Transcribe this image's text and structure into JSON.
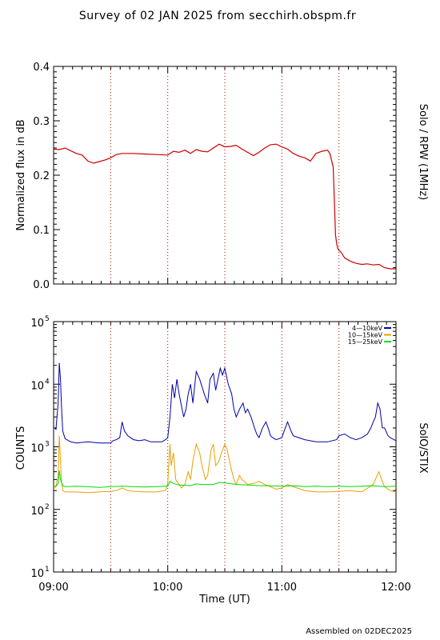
{
  "title": "Survey of 02 JAN 2025 from secchirh.obspm.fr",
  "footer": "Assembled on 02DEC2025",
  "time_axis": {
    "xlabel": "Time (UT)",
    "ticks": [
      "09:00",
      "10:00",
      "11:00",
      "12:00"
    ],
    "range_hours": [
      9,
      12
    ],
    "dotted_markers_hours": [
      9.5,
      10.0,
      10.5,
      11.0,
      11.5
    ]
  },
  "colors": {
    "rpw": "#cc0000",
    "band1": "#0000aa",
    "band2": "#e8a000",
    "band3": "#00dd00",
    "marker": "#aa0000"
  },
  "chart_data": [
    {
      "type": "line",
      "ylabel": "Normalized flux in dB",
      "right_label": "Solo / RPW (1MHz)",
      "ylim": [
        0,
        0.4
      ],
      "yscale": "linear",
      "yticks": [
        "0.0",
        "0.1",
        "0.2",
        "0.3",
        "0.4"
      ],
      "series": [
        {
          "x": [
            9.0,
            9.05,
            9.1,
            9.15,
            9.2,
            9.25,
            9.3,
            9.35,
            9.4,
            9.45,
            9.5,
            9.55,
            9.6,
            9.7,
            9.8,
            9.9,
            10.0,
            10.05,
            10.1,
            10.15,
            10.2,
            10.25,
            10.3,
            10.35,
            10.4,
            10.45,
            10.5,
            10.55,
            10.6,
            10.65,
            10.7,
            10.75,
            10.8,
            10.85,
            10.9,
            10.95,
            11.0,
            11.05,
            11.1,
            11.15,
            11.2,
            11.25,
            11.3,
            11.35,
            11.4,
            11.42,
            11.45,
            11.47,
            11.48,
            11.49,
            11.5,
            11.52,
            11.55,
            11.6,
            11.65,
            11.7,
            11.75,
            11.8,
            11.85,
            11.9,
            11.95,
            12.0
          ],
          "values": [
            0.248,
            0.247,
            0.25,
            0.245,
            0.24,
            0.237,
            0.226,
            0.222,
            0.225,
            0.228,
            0.232,
            0.238,
            0.24,
            0.24,
            0.239,
            0.238,
            0.237,
            0.244,
            0.242,
            0.246,
            0.24,
            0.247,
            0.244,
            0.243,
            0.25,
            0.257,
            0.252,
            0.253,
            0.255,
            0.248,
            0.242,
            0.236,
            0.242,
            0.25,
            0.256,
            0.257,
            0.252,
            0.248,
            0.24,
            0.235,
            0.232,
            0.226,
            0.24,
            0.244,
            0.246,
            0.24,
            0.215,
            0.09,
            0.075,
            0.065,
            0.062,
            0.058,
            0.048,
            0.042,
            0.038,
            0.036,
            0.037,
            0.035,
            0.036,
            0.03,
            0.028,
            0.028
          ]
        }
      ]
    },
    {
      "type": "line",
      "ylabel": "COUNTS",
      "right_label": "SolO/STIX",
      "ylim": [
        10,
        100000
      ],
      "yscale": "log",
      "yticks": [
        "10",
        "10",
        "10",
        "10",
        "10"
      ],
      "ytick_exponents": [
        "1",
        "2",
        "3",
        "4",
        "5"
      ],
      "legend": "top-right",
      "series": [
        {
          "name": "4—10keV",
          "x": [
            9.0,
            9.01,
            9.02,
            9.04,
            9.05,
            9.06,
            9.07,
            9.08,
            9.1,
            9.15,
            9.2,
            9.3,
            9.4,
            9.5,
            9.52,
            9.55,
            9.58,
            9.6,
            9.62,
            9.65,
            9.7,
            9.75,
            9.8,
            9.85,
            9.9,
            9.95,
            9.98,
            10.0,
            10.02,
            10.04,
            10.06,
            10.08,
            10.1,
            10.12,
            10.14,
            10.16,
            10.18,
            10.2,
            10.22,
            10.25,
            10.28,
            10.32,
            10.35,
            10.37,
            10.4,
            10.42,
            10.44,
            10.46,
            10.48,
            10.5,
            10.53,
            10.56,
            10.58,
            10.6,
            10.63,
            10.66,
            10.68,
            10.7,
            10.73,
            10.76,
            10.78,
            10.8,
            10.83,
            10.86,
            10.88,
            10.9,
            10.92,
            10.95,
            11.0,
            11.03,
            11.05,
            11.08,
            11.1,
            11.15,
            11.2,
            11.3,
            11.4,
            11.48,
            11.5,
            11.55,
            11.6,
            11.65,
            11.7,
            11.75,
            11.78,
            11.8,
            11.82,
            11.84,
            11.86,
            11.88,
            11.9,
            11.93,
            11.95,
            12.0
          ],
          "values": [
            2000,
            2000,
            1900,
            5000,
            22000,
            12000,
            4000,
            1800,
            1350,
            1200,
            1150,
            1200,
            1150,
            1150,
            1250,
            1300,
            1400,
            2500,
            1800,
            1500,
            1300,
            1250,
            1300,
            1200,
            1200,
            1200,
            1300,
            1400,
            3000,
            10000,
            6000,
            12000,
            7000,
            4500,
            3000,
            4000,
            7000,
            10000,
            5000,
            16000,
            12000,
            7000,
            5000,
            12000,
            15000,
            8000,
            12000,
            18000,
            14000,
            18000,
            10000,
            7000,
            4000,
            3000,
            4000,
            5000,
            3500,
            4000,
            3000,
            2000,
            1600,
            1400,
            2000,
            2500,
            2000,
            1500,
            1400,
            1300,
            1400,
            2000,
            2500,
            1800,
            1500,
            1400,
            1300,
            1200,
            1200,
            1300,
            1500,
            1600,
            1400,
            1300,
            1400,
            1600,
            2000,
            2500,
            3000,
            5000,
            4000,
            2000,
            2000,
            1500,
            1400,
            1250
          ]
        },
        {
          "name": "10—15keV",
          "x": [
            9.0,
            9.02,
            9.04,
            9.05,
            9.06,
            9.07,
            9.08,
            9.1,
            9.2,
            9.3,
            9.4,
            9.5,
            9.55,
            9.6,
            9.65,
            9.7,
            9.8,
            9.9,
            9.98,
            10.0,
            10.02,
            10.03,
            10.05,
            10.07,
            10.1,
            10.12,
            10.15,
            10.18,
            10.2,
            10.22,
            10.25,
            10.28,
            10.3,
            10.33,
            10.35,
            10.38,
            10.4,
            10.42,
            10.45,
            10.47,
            10.5,
            10.52,
            10.55,
            10.58,
            10.6,
            10.63,
            10.65,
            10.7,
            10.75,
            10.8,
            10.85,
            10.9,
            10.95,
            11.0,
            11.05,
            11.1,
            11.2,
            11.3,
            11.4,
            11.5,
            11.6,
            11.7,
            11.8,
            11.85,
            11.88,
            11.9,
            11.95,
            12.0
          ],
          "values": [
            220,
            230,
            350,
            1500,
            600,
            280,
            200,
            190,
            190,
            185,
            190,
            195,
            200,
            220,
            200,
            195,
            190,
            190,
            200,
            260,
            1100,
            500,
            800,
            300,
            250,
            220,
            250,
            400,
            300,
            600,
            1100,
            800,
            500,
            300,
            350,
            900,
            1100,
            500,
            600,
            800,
            1100,
            900,
            500,
            300,
            250,
            350,
            300,
            250,
            260,
            280,
            250,
            230,
            210,
            220,
            250,
            230,
            200,
            190,
            190,
            195,
            200,
            190,
            250,
            400,
            280,
            230,
            200,
            190
          ]
        },
        {
          "name": "15—25keV",
          "x": [
            9.0,
            9.02,
            9.04,
            9.05,
            9.06,
            9.08,
            9.1,
            9.2,
            9.3,
            9.4,
            9.5,
            9.6,
            9.7,
            9.8,
            9.9,
            10.0,
            10.02,
            10.05,
            10.1,
            10.2,
            10.25,
            10.3,
            10.4,
            10.45,
            10.5,
            10.6,
            10.7,
            10.8,
            10.9,
            11.0,
            11.1,
            11.2,
            11.3,
            11.4,
            11.5,
            11.6,
            11.7,
            11.8,
            11.9,
            12.0
          ],
          "values": [
            230,
            235,
            260,
            420,
            300,
            240,
            230,
            235,
            230,
            225,
            230,
            235,
            230,
            228,
            232,
            235,
            280,
            260,
            245,
            240,
            255,
            250,
            250,
            270,
            265,
            250,
            245,
            240,
            238,
            235,
            238,
            232,
            235,
            230,
            235,
            232,
            235,
            238,
            232,
            235
          ]
        }
      ]
    }
  ]
}
